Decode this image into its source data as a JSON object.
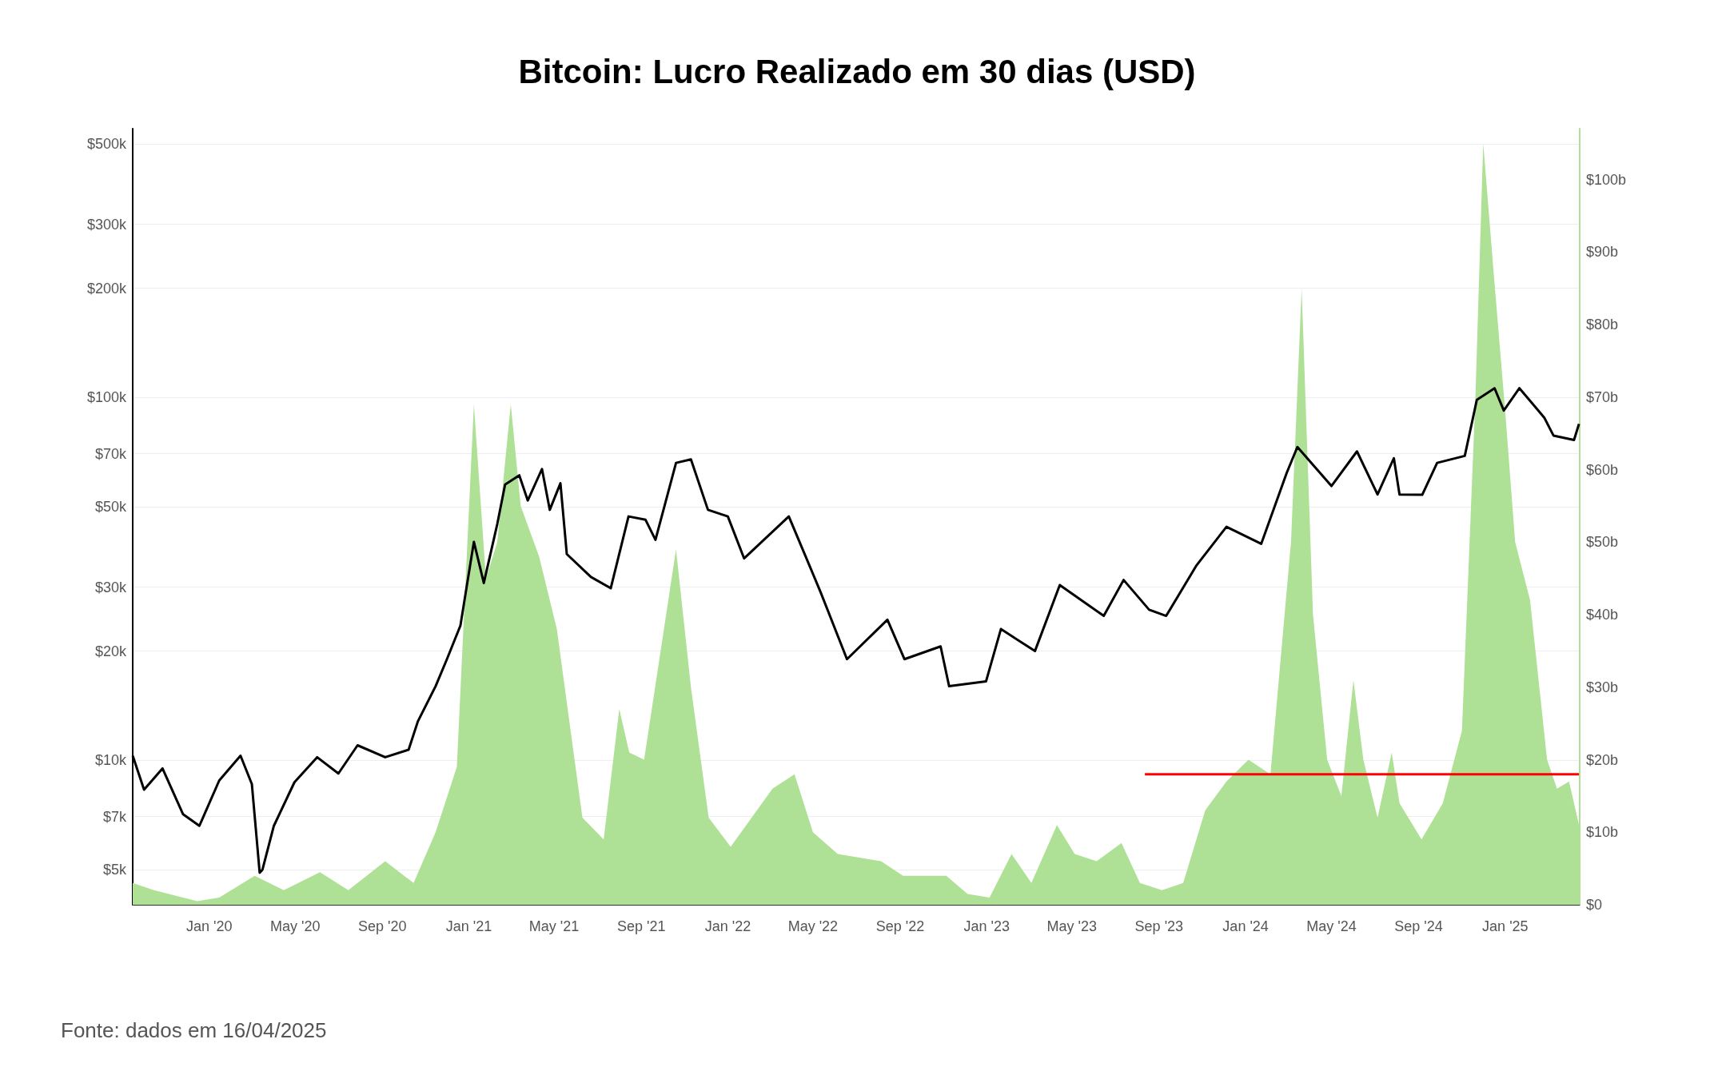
{
  "chart_data": {
    "type": "line",
    "title": "Bitcoin: Lucro Realizado em 30 dias (USD)",
    "annotations": [
      "Fonte: dados em 16/04/2025"
    ],
    "log": "y",
    "grid": "y",
    "marker": "none",
    "line_style": "solid",
    "xlim": [
      "2019-09-15",
      "2025-04-16"
    ],
    "xticks": [
      {
        "value": "2020-01-01",
        "label": "Jan '20"
      },
      {
        "value": "2020-05-01",
        "label": "May '20"
      },
      {
        "value": "2020-09-01",
        "label": "Sep '20"
      },
      {
        "value": "2021-01-01",
        "label": "Jan '21"
      },
      {
        "value": "2021-05-01",
        "label": "May '21"
      },
      {
        "value": "2021-09-01",
        "label": "Sep '21"
      },
      {
        "value": "2022-01-01",
        "label": "Jan '22"
      },
      {
        "value": "2022-05-01",
        "label": "May '22"
      },
      {
        "value": "2022-09-01",
        "label": "Sep '22"
      },
      {
        "value": "2023-01-01",
        "label": "Jan '23"
      },
      {
        "value": "2023-05-01",
        "label": "May '23"
      },
      {
        "value": "2023-09-01",
        "label": "Sep '23"
      },
      {
        "value": "2024-01-01",
        "label": "Jan '24"
      },
      {
        "value": "2024-05-01",
        "label": "May '24"
      },
      {
        "value": "2024-09-01",
        "label": "Sep '24"
      },
      {
        "value": "2025-01-01",
        "label": "Jan '25"
      }
    ],
    "ylim": [
      4000,
      550000
    ],
    "yticks": [
      {
        "value": 5000,
        "label": "$5k"
      },
      {
        "value": 7000,
        "label": "$7k"
      },
      {
        "value": 10000,
        "label": "$10k"
      },
      {
        "value": 20000,
        "label": "$20k"
      },
      {
        "value": 30000,
        "label": "$30k"
      },
      {
        "value": 50000,
        "label": "$50k"
      },
      {
        "value": 70000,
        "label": "$70k"
      },
      {
        "value": 100000,
        "label": "$100k"
      },
      {
        "value": 200000,
        "label": "$200k"
      },
      {
        "value": 300000,
        "label": "$300k"
      },
      {
        "value": 500000,
        "label": "$500k"
      }
    ],
    "y2lim": [
      0,
      107
    ],
    "y2ticks": [
      {
        "value": 0,
        "label": "$0"
      },
      {
        "value": 10,
        "label": "$10b"
      },
      {
        "value": 20,
        "label": "$20b"
      },
      {
        "value": 30,
        "label": "$30b"
      },
      {
        "value": 40,
        "label": "$40b"
      },
      {
        "value": 50,
        "label": "$50b"
      },
      {
        "value": 60,
        "label": "$60b"
      },
      {
        "value": 70,
        "label": "$70b"
      },
      {
        "value": 80,
        "label": "$80b"
      },
      {
        "value": 90,
        "label": "$90b"
      },
      {
        "value": 100,
        "label": "$100b"
      }
    ],
    "series": [
      {
        "type": "area",
        "axis": "y2",
        "color": "#aee196",
        "x": [
          "2019-09-15",
          "2019-10-15",
          "2019-12-15",
          "2020-01-15",
          "2020-03-05",
          "2020-04-15",
          "2020-06-05",
          "2020-07-15",
          "2020-09-05",
          "2020-10-15",
          "2020-11-15",
          "2020-12-15",
          "2021-01-08",
          "2021-01-25",
          "2021-02-10",
          "2021-03-01",
          "2021-03-15",
          "2021-04-10",
          "2021-05-05",
          "2021-06-10",
          "2021-07-10",
          "2021-08-01",
          "2021-08-15",
          "2021-09-05",
          "2021-10-20",
          "2021-11-10",
          "2021-12-05",
          "2022-01-05",
          "2022-03-05",
          "2022-04-05",
          "2022-05-01",
          "2022-06-05",
          "2022-08-05",
          "2022-09-05",
          "2022-11-05",
          "2022-12-05",
          "2023-01-05",
          "2023-02-05",
          "2023-03-05",
          "2023-04-10",
          "2023-05-05",
          "2023-06-05",
          "2023-07-10",
          "2023-08-05",
          "2023-09-05",
          "2023-10-05",
          "2023-11-05",
          "2023-12-05",
          "2024-01-05",
          "2024-02-05",
          "2024-03-05",
          "2024-03-20",
          "2024-04-05",
          "2024-04-25",
          "2024-05-15",
          "2024-06-01",
          "2024-06-15",
          "2024-07-05",
          "2024-07-25",
          "2024-08-05",
          "2024-09-05",
          "2024-10-05",
          "2024-11-01",
          "2024-11-20",
          "2024-12-01",
          "2024-12-15",
          "2025-01-01",
          "2025-01-15",
          "2025-02-05",
          "2025-03-01",
          "2025-03-15",
          "2025-04-01",
          "2025-04-15"
        ],
        "values": [
          3,
          2,
          0.5,
          1,
          4,
          2,
          4.5,
          2,
          6,
          3,
          10,
          19,
          69,
          45,
          50,
          69,
          55,
          48,
          38,
          12,
          9,
          27,
          21,
          20,
          49,
          30,
          12,
          8,
          16,
          18,
          10,
          7,
          6,
          4,
          4,
          1.5,
          1,
          7,
          3,
          11,
          7,
          6,
          8.5,
          3,
          2,
          3,
          13,
          17,
          20,
          18,
          50,
          85,
          40,
          20,
          15,
          31,
          20,
          12,
          21,
          14,
          9,
          14,
          24,
          70,
          105,
          88,
          68,
          50,
          42,
          20,
          16,
          17,
          11
        ]
      },
      {
        "color": "#000000",
        "x": [
          "2019-09-15",
          "2019-10-01",
          "2019-10-27",
          "2019-11-25",
          "2019-12-18",
          "2020-01-15",
          "2020-02-14",
          "2020-03-01",
          "2020-03-12",
          "2020-03-16",
          "2020-04-01",
          "2020-04-30",
          "2020-06-01",
          "2020-07-01",
          "2020-07-28",
          "2020-09-05",
          "2020-10-08",
          "2020-10-21",
          "2020-11-15",
          "2020-12-01",
          "2020-12-20",
          "2021-01-08",
          "2021-01-22",
          "2021-02-10",
          "2021-02-21",
          "2021-03-13",
          "2021-03-25",
          "2021-04-14",
          "2021-04-25",
          "2021-05-10",
          "2021-05-19",
          "2021-06-22",
          "2021-07-20",
          "2021-08-14",
          "2021-09-07",
          "2021-09-21",
          "2021-10-20",
          "2021-11-10",
          "2021-12-04",
          "2022-01-01",
          "2022-01-24",
          "2022-03-28",
          "2022-05-12",
          "2022-06-18",
          "2022-08-14",
          "2022-09-07",
          "2022-10-28",
          "2022-11-09",
          "2022-12-31",
          "2023-01-21",
          "2023-03-10",
          "2023-04-14",
          "2023-06-15",
          "2023-07-13",
          "2023-08-18",
          "2023-09-11",
          "2023-10-24",
          "2023-12-05",
          "2024-01-23",
          "2024-02-28",
          "2024-03-14",
          "2024-05-01",
          "2024-06-06",
          "2024-07-05",
          "2024-07-28",
          "2024-08-05",
          "2024-09-06",
          "2024-09-27",
          "2024-11-05",
          "2024-11-22",
          "2024-12-17",
          "2024-12-30",
          "2025-01-21",
          "2025-02-25",
          "2025-03-10",
          "2025-04-08",
          "2025-04-15"
        ],
        "values": [
          10300,
          8300,
          9500,
          7100,
          6600,
          8800,
          10300,
          8600,
          4900,
          5000,
          6600,
          8700,
          10200,
          9200,
          11000,
          10200,
          10700,
          12800,
          16000,
          19000,
          23500,
          40000,
          30800,
          44800,
          57500,
          61000,
          52000,
          63500,
          49000,
          58000,
          37000,
          32000,
          29800,
          47000,
          46000,
          40500,
          66000,
          67500,
          49000,
          47000,
          36000,
          47000,
          29000,
          19000,
          24400,
          19000,
          20600,
          16000,
          16500,
          23000,
          20000,
          30400,
          25000,
          31400,
          26000,
          25000,
          34500,
          44000,
          39500,
          62000,
          73000,
          57000,
          71000,
          54000,
          68000,
          54000,
          53900,
          66000,
          69000,
          98500,
          106000,
          92000,
          106000,
          88000,
          78500,
          76300,
          84500
        ]
      },
      {
        "axis": "y2",
        "color": "#ff0000",
        "x": [
          "2023-08-12",
          "2025-04-15"
        ],
        "values": [
          18,
          18
        ]
      }
    ]
  }
}
